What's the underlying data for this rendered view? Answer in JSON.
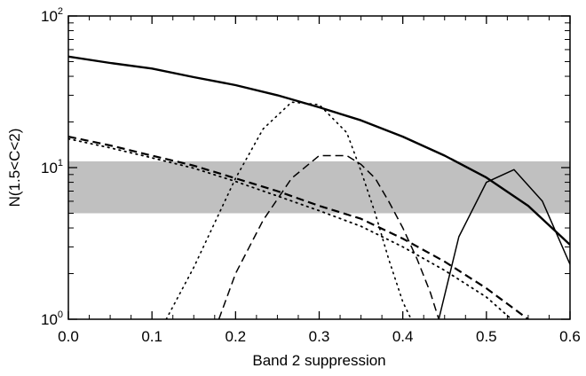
{
  "chart_data": {
    "type": "line",
    "xlabel": "Band 2 suppression",
    "ylabel": "N(1.5<C<2)",
    "xlim": [
      0.0,
      0.6
    ],
    "ylim": [
      1,
      100
    ],
    "yscale": "log",
    "x_ticks": [
      "0.0",
      "0.1",
      "0.2",
      "0.3",
      "0.4",
      "0.5",
      "0.6"
    ],
    "y_ticks": [
      {
        "base": "10",
        "exp": "0"
      },
      {
        "base": "10",
        "exp": "1"
      },
      {
        "base": "10",
        "exp": "2"
      }
    ],
    "grid": false,
    "legend": "none",
    "band": {
      "y_low": 5,
      "y_high": 11,
      "color": "#c0c0c0"
    },
    "series": [
      {
        "style": "solid",
        "width": 2.4,
        "x": [
          0.0,
          0.05,
          0.1,
          0.15,
          0.2,
          0.25,
          0.3,
          0.35,
          0.4,
          0.45,
          0.5,
          0.55,
          0.6
        ],
        "y": [
          54,
          49,
          45,
          39.5,
          35,
          30,
          25,
          20.5,
          16,
          12,
          8.6,
          5.6,
          3.1
        ]
      },
      {
        "style": "dashed",
        "width": 2.2,
        "x": [
          0.0,
          0.05,
          0.1,
          0.15,
          0.2,
          0.25,
          0.3,
          0.35,
          0.4,
          0.45,
          0.5,
          0.55
        ],
        "y": [
          16,
          14,
          12,
          10.3,
          8.5,
          7.0,
          5.6,
          4.6,
          3.4,
          2.4,
          1.6,
          1.0
        ]
      },
      {
        "style": "dotted",
        "width": 1.8,
        "x": [
          0.0,
          0.05,
          0.1,
          0.15,
          0.2,
          0.25,
          0.3,
          0.35,
          0.4,
          0.45,
          0.5,
          0.53
        ],
        "y": [
          15.5,
          13.5,
          11.6,
          9.9,
          8.1,
          6.5,
          5.2,
          4.1,
          3.0,
          2.1,
          1.4,
          1.0
        ]
      },
      {
        "style": "dotted",
        "width": 1.6,
        "x": [
          0.117,
          0.15,
          0.2,
          0.233,
          0.267,
          0.3,
          0.333,
          0.35,
          0.367,
          0.383,
          0.4,
          0.41
        ],
        "y": [
          1.0,
          2.2,
          8.5,
          18,
          27,
          26,
          17,
          9.5,
          5,
          2.5,
          1.3,
          1.0
        ]
      },
      {
        "style": "dashed",
        "width": 1.5,
        "x": [
          0.18,
          0.2,
          0.233,
          0.267,
          0.3,
          0.333,
          0.35,
          0.367,
          0.383,
          0.4,
          0.417,
          0.433,
          0.443
        ],
        "y": [
          1.0,
          2.0,
          4.5,
          8.5,
          12,
          12,
          10.5,
          8.5,
          6,
          4,
          2.5,
          1.5,
          1.0
        ]
      },
      {
        "style": "solid",
        "width": 1.5,
        "x": [
          0.443,
          0.467,
          0.5,
          0.533,
          0.567,
          0.6
        ],
        "y": [
          1.0,
          3.5,
          8.0,
          9.7,
          6.0,
          2.3
        ]
      }
    ]
  }
}
